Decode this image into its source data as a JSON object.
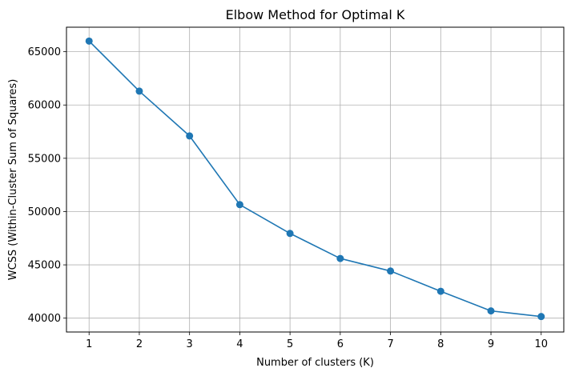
{
  "chart_data": {
    "type": "line",
    "title": "Elbow Method for Optimal K",
    "xlabel": "Number of clusters (K)",
    "ylabel": "WCSS (Within-Cluster Sum of Squares)",
    "x": [
      1,
      2,
      3,
      4,
      5,
      6,
      7,
      8,
      9,
      10
    ],
    "series": [
      {
        "values": [
          66000,
          61300,
          57100,
          50650,
          47950,
          45600,
          44420,
          42520,
          40680,
          40150
        ],
        "color": "#1f77b4",
        "marker": "circle"
      }
    ],
    "xticks": [
      "1",
      "2",
      "3",
      "4",
      "5",
      "6",
      "7",
      "8",
      "9",
      "10"
    ],
    "yticks": [
      "40000",
      "45000",
      "50000",
      "55000",
      "60000",
      "65000"
    ],
    "xlim": [
      0.55,
      10.45
    ],
    "ylim": [
      38700,
      67300
    ],
    "grid": true
  }
}
